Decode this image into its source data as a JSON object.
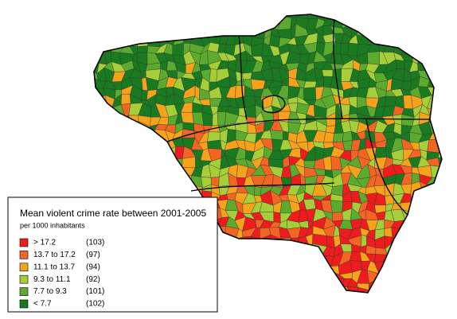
{
  "legend": {
    "title": "Mean violent crime rate between 2001-2005",
    "subtitle": "per 1000 inhabitants",
    "items": [
      {
        "label": "> 17.2",
        "count": "(103)",
        "color": "#ee1c1c"
      },
      {
        "label": "13.7 to 17.2",
        "count": "(97)",
        "color": "#f26522"
      },
      {
        "label": "11.1 to 13.7",
        "count": "(94)",
        "color": "#f7a21b"
      },
      {
        "label": "9.3 to 11.1",
        "count": "(92)",
        "color": "#a6ce39"
      },
      {
        "label": "7.7 to  9.3",
        "count": "(101)",
        "color": "#5cab2e"
      },
      {
        "label": "< 7.7",
        "count": "(102)",
        "color": "#1a7a1f"
      }
    ]
  }
}
